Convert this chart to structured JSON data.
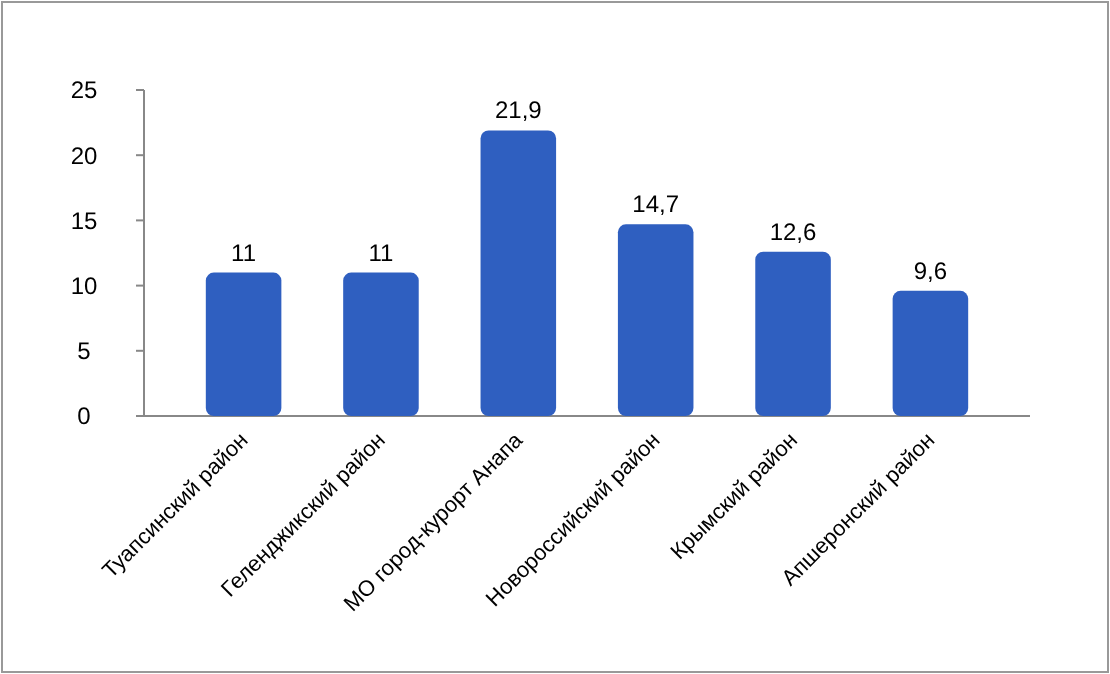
{
  "chart_data": {
    "type": "bar",
    "categories": [
      "Туапсинский район",
      "Геленджикский район",
      "МО город-курорт Анапа",
      "Новороссийский район",
      "Крымский район",
      "Апшеронский район"
    ],
    "values": [
      11,
      11,
      21.9,
      14.7,
      12.6,
      9.6
    ],
    "value_labels": [
      "11",
      "11",
      "21,9",
      "14,7",
      "12,6",
      "9,6"
    ],
    "color": "#2f5fc0",
    "ylim": [
      0,
      25
    ],
    "yticks": [
      0,
      5,
      10,
      15,
      20,
      25
    ],
    "grid": false
  }
}
